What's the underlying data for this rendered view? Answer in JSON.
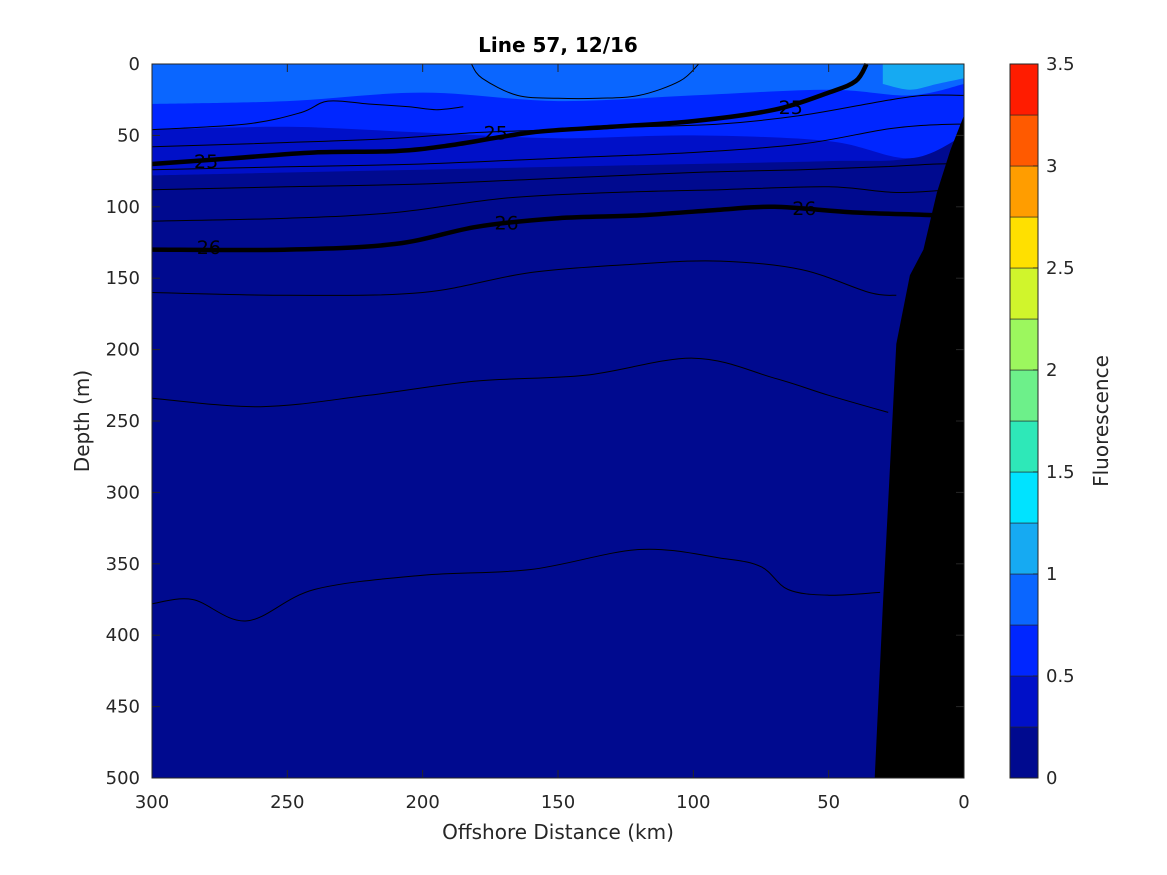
{
  "chart_data": {
    "type": "contour",
    "title": "Line 57, 12/16",
    "xlabel": "Offshore Distance (km)",
    "ylabel": "Depth (m)",
    "xlim": [
      300,
      0
    ],
    "ylim": [
      0,
      500
    ],
    "x_reversed": true,
    "y_reversed": true,
    "xticks": [
      "300",
      "250",
      "200",
      "150",
      "100",
      "50",
      "0"
    ],
    "yticks": [
      "0",
      "50",
      "100",
      "150",
      "200",
      "250",
      "300",
      "350",
      "400",
      "450",
      "500"
    ],
    "colorbar": {
      "label": "Fluorescence",
      "range": [
        0,
        3.5
      ],
      "ticks": [
        "0",
        "0.5",
        "1",
        "1.5",
        "2",
        "2.5",
        "3",
        "3.5"
      ],
      "levels": [
        0,
        0.25,
        0.5,
        0.75,
        1.0,
        1.25,
        1.5,
        1.75,
        2.0,
        2.25,
        2.5,
        2.75,
        3.0,
        3.25,
        3.5
      ],
      "colors": [
        "#000a8f",
        "#0010c8",
        "#0026ff",
        "#0a66ff",
        "#16aaf2",
        "#00e3ff",
        "#2ee8b8",
        "#6df08a",
        "#9cf75e",
        "#d0f52c",
        "#ffe000",
        "#ff9d00",
        "#ff5a00",
        "#ff1c00",
        "#c00000"
      ]
    },
    "fluorescence_fields": [
      {
        "level": "0.25-0.5",
        "color": "#0010c8",
        "depth_profile": {
          "x": [
            300,
            250,
            200,
            150,
            100,
            50,
            20,
            0
          ],
          "bottom_depth": [
            78,
            76,
            74,
            72,
            70,
            68,
            66,
            50
          ]
        }
      },
      {
        "level": "0.5-0.75",
        "color": "#0026ff",
        "depth_profile": {
          "x": [
            300,
            250,
            200,
            150,
            100,
            50,
            20,
            0
          ],
          "bottom_depth": [
            46,
            44,
            48,
            52,
            50,
            54,
            66,
            50
          ]
        }
      },
      {
        "level": "0.75-1.0",
        "color": "#0a66ff",
        "depth_profile": {
          "x": [
            300,
            250,
            200,
            150,
            100,
            50,
            20,
            0
          ],
          "bottom_depth": [
            28,
            26,
            20,
            26,
            22,
            18,
            22,
            14
          ]
        }
      },
      {
        "level": "1.0-1.25",
        "color": "#16aaf2",
        "depth_profile": {
          "x": [
            30,
            20,
            10,
            0
          ],
          "bottom_depth": [
            14,
            18,
            14,
            10
          ]
        }
      }
    ],
    "density_contours": [
      {
        "value": 24.75,
        "labeled": false,
        "x": [
          182,
          178,
          165,
          150,
          135,
          120,
          105,
          98
        ],
        "depth": [
          0,
          10,
          22,
          24,
          24,
          22,
          12,
          0
        ]
      },
      {
        "value": 24.75,
        "labeled": false,
        "x": [
          300,
          265,
          245,
          235,
          220,
          205,
          195,
          185
        ],
        "depth": [
          46,
          42,
          34,
          26,
          28,
          30,
          32,
          30
        ]
      },
      {
        "value": 25,
        "labeled": true,
        "label_at": [
          [
            280,
            68
          ],
          [
            173,
            48
          ],
          [
            64,
            30
          ]
        ],
        "x": [
          300,
          270,
          240,
          210,
          190,
          160,
          130,
          100,
          70,
          50,
          40,
          36
        ],
        "depth": [
          70,
          66,
          62,
          61,
          57,
          48,
          44,
          40,
          32,
          20,
          12,
          0
        ]
      },
      {
        "value": 25.25,
        "labeled": false,
        "x": [
          300,
          250,
          210,
          180,
          150,
          120,
          90,
          60,
          30,
          15,
          0
        ],
        "depth": [
          58,
          55,
          52,
          48,
          46,
          44,
          42,
          36,
          26,
          22,
          22
        ]
      },
      {
        "value": 25.5,
        "labeled": false,
        "x": [
          300,
          250,
          200,
          150,
          100,
          60,
          30,
          15,
          0
        ],
        "depth": [
          74,
          72,
          70,
          66,
          62,
          56,
          46,
          43,
          42
        ]
      },
      {
        "value": 25.75,
        "labeled": false,
        "x": [
          300,
          250,
          200,
          150,
          100,
          60,
          30,
          10,
          0
        ],
        "depth": [
          88,
          86,
          84,
          80,
          76,
          74,
          72,
          70,
          70
        ]
      },
      {
        "value": 25.75,
        "labeled": false,
        "x": [
          300,
          250,
          210,
          170,
          130,
          90,
          50,
          25,
          5
        ],
        "depth": [
          110,
          108,
          104,
          94,
          90,
          88,
          86,
          90,
          88
        ]
      },
      {
        "value": 26,
        "labeled": true,
        "label_at": [
          [
            279,
            128
          ],
          [
            169,
            111
          ],
          [
            59,
            101
          ]
        ],
        "x": [
          300,
          250,
          210,
          180,
          150,
          120,
          90,
          70,
          40,
          10,
          2
        ],
        "depth": [
          130,
          130,
          126,
          114,
          108,
          106,
          102,
          100,
          104,
          106,
          108
        ]
      },
      {
        "value": 26.25,
        "labeled": false,
        "x": [
          300,
          250,
          200,
          160,
          120,
          90,
          60,
          35,
          25
        ],
        "depth": [
          160,
          162,
          160,
          146,
          140,
          138,
          144,
          160,
          162
        ]
      },
      {
        "value": 26.5,
        "labeled": false,
        "x": [
          300,
          260,
          220,
          180,
          140,
          100,
          70,
          50,
          28
        ],
        "depth": [
          234,
          240,
          232,
          222,
          218,
          206,
          220,
          232,
          244
        ]
      },
      {
        "value": 26.75,
        "labeled": false,
        "x": [
          300,
          285,
          265,
          240,
          200,
          160,
          120,
          90,
          75,
          65,
          50,
          31
        ],
        "depth": [
          378,
          375,
          390,
          368,
          358,
          354,
          340,
          346,
          352,
          368,
          372,
          370
        ]
      }
    ],
    "bottom_topography": {
      "x": [
        33,
        30,
        25,
        20,
        15,
        10,
        5,
        0
      ],
      "depth": [
        500,
        380,
        196,
        148,
        130,
        90,
        60,
        36
      ]
    }
  }
}
